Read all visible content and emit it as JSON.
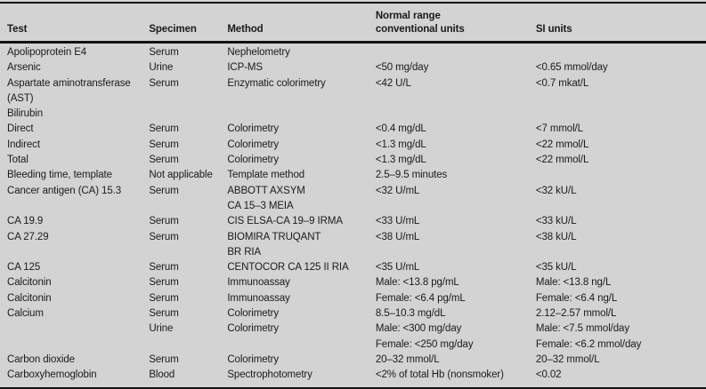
{
  "page": {
    "colors": {
      "background": "#d3d3d3",
      "text": "#1a1a1a",
      "rule": "#121212"
    }
  },
  "table": {
    "columns": [
      {
        "key": "test",
        "label": "Test"
      },
      {
        "key": "specimen",
        "label": "Specimen"
      },
      {
        "key": "method",
        "label": "Method"
      },
      {
        "key": "conventional",
        "label": "Normal range\nconventional units"
      },
      {
        "key": "si",
        "label": "SI units"
      }
    ],
    "rows": [
      {
        "test": "Apolipoprotein E4",
        "specimen": "Serum",
        "method": "Nephelometry",
        "conventional": "",
        "si": ""
      },
      {
        "test": "Arsenic",
        "specimen": "Urine",
        "method": "ICP-MS",
        "conventional": "<50 mg/day",
        "si": "<0.65 mmol/day"
      },
      {
        "test": "Aspartate aminotransferase\n(AST)",
        "specimen": "Serum",
        "method": "Enzymatic colorimetry",
        "conventional": "<42 U/L",
        "si": "<0.7 mkat/L"
      },
      {
        "test": "Bilirubin",
        "specimen": "",
        "method": "",
        "conventional": "",
        "si": ""
      },
      {
        "test": "Direct",
        "specimen": "Serum",
        "method": "Colorimetry",
        "conventional": "<0.4 mg/dL",
        "si": "<7 mmol/L"
      },
      {
        "test": "Indirect",
        "specimen": "Serum",
        "method": "Colorimetry",
        "conventional": "<1.3 mg/dL",
        "si": "<22 mmol/L"
      },
      {
        "test": "Total",
        "specimen": "Serum",
        "method": "Colorimetry",
        "conventional": "<1.3 mg/dL",
        "si": "<22 mmol/L"
      },
      {
        "test": "Bleeding time, template",
        "specimen": "Not applicable",
        "method": "Template method",
        "conventional": "2.5–9.5 minutes",
        "si": ""
      },
      {
        "test": "Cancer antigen (CA) 15.3",
        "specimen": "Serum",
        "method": "ABBOTT AXSYM\nCA 15–3 MEIA",
        "conventional": "<32 U/mL",
        "si": "<32 kU/L"
      },
      {
        "test": "CA 19.9",
        "specimen": "Serum",
        "method": "CIS ELSA-CA 19–9 IRMA",
        "conventional": "<33 U/mL",
        "si": "<33 kU/L"
      },
      {
        "test": "CA 27.29",
        "specimen": "Serum",
        "method": "BIOMIRA TRUQANT\nBR RIA",
        "conventional": "<38 U/mL",
        "si": "<38 kU/L"
      },
      {
        "test": "CA 125",
        "specimen": "Serum",
        "method": "CENTOCOR CA 125 II RIA",
        "conventional": "<35 U/mL",
        "si": "<35 kU/L"
      },
      {
        "test": "Calcitonin",
        "specimen": "Serum",
        "method": "Immunoassay",
        "conventional": "Male: <13.8 pg/mL",
        "si": "Male: <13.8 ng/L"
      },
      {
        "test": "Calcitonin",
        "specimen": "Serum",
        "method": "Immunoassay",
        "conventional": "Female: <6.4 pg/mL",
        "si": "Female: <6.4 ng/L"
      },
      {
        "test": "Calcium",
        "specimen": "Serum",
        "method": "Colorimetry",
        "conventional": "8.5–10.3 mg/dL",
        "si": "2.12–2.57 mmol/L"
      },
      {
        "test": "",
        "specimen": "Urine",
        "method": "Colorimetry",
        "conventional": "Male: <300 mg/day\nFemale: <250 mg/day",
        "si": "Male: <7.5 mmol/day\nFemale: <6.2 mmol/day"
      },
      {
        "test": "Carbon dioxide",
        "specimen": "Serum",
        "method": "Colorimetry",
        "conventional": "20–32 mmol/L",
        "si": "20–32 mmol/L"
      },
      {
        "test": "Carboxyhemoglobin",
        "specimen": "Blood",
        "method": "Spectrophotometry",
        "conventional": "<2% of total Hb (nonsmoker)",
        "si": "<0.02"
      }
    ]
  }
}
